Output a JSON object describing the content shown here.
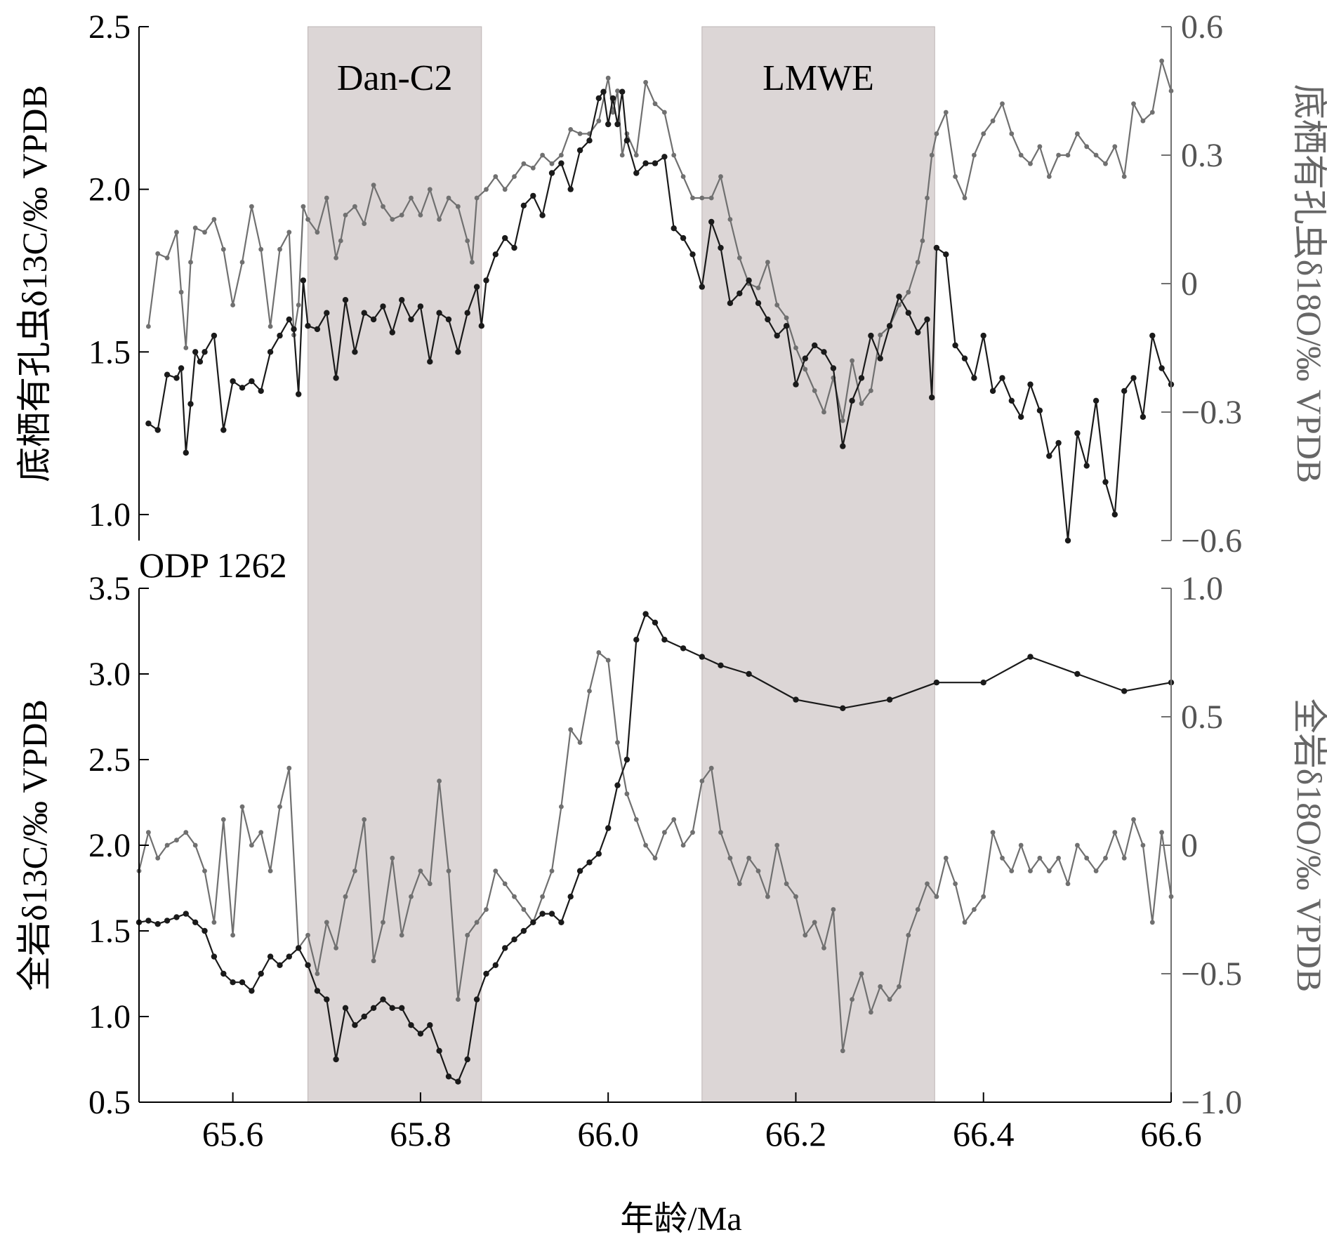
{
  "figure": {
    "xlabel": "年龄/Ma",
    "x_ticks": [
      "65.6",
      "65.8",
      "66.0",
      "66.2",
      "66.4",
      "66.6"
    ],
    "xlim": [
      65.5,
      66.6
    ],
    "colors": {
      "dark": "#1a1a1a",
      "gray": "#707070",
      "shade": "#dcd6d6",
      "axis": "#000000"
    },
    "shaded_intervals": [
      {
        "label": "Dan-C2",
        "start": 65.68,
        "end": 65.865
      },
      {
        "label": "LMWE",
        "start": 66.1,
        "end": 66.348
      }
    ]
  },
  "chart_data": [
    {
      "type": "line",
      "panel": "top",
      "ylabel_left": "底栖有孔虫δ13C/‰ VPDB",
      "ylabel_right": "底栖有孔虫δ18O/‰ VPDB",
      "ylim_left": [
        0.92,
        2.5
      ],
      "ylim_right": [
        -0.6,
        0.6
      ],
      "left_ticks": [
        "1.0",
        "1.5",
        "2.0",
        "2.5"
      ],
      "right_ticks": [
        "−0.6",
        "−0.3",
        "0",
        "0.3",
        "0.6"
      ],
      "series": [
        {
          "axis": "left",
          "style": "dark",
          "x": [
            65.51,
            65.52,
            65.53,
            65.54,
            65.545,
            65.55,
            65.555,
            65.56,
            65.565,
            65.57,
            65.58,
            65.59,
            65.6,
            65.61,
            65.62,
            65.63,
            65.64,
            65.65,
            65.66,
            65.665,
            65.67,
            65.675,
            65.68,
            65.69,
            65.7,
            65.71,
            65.72,
            65.73,
            65.74,
            65.75,
            65.76,
            65.77,
            65.78,
            65.79,
            65.8,
            65.81,
            65.82,
            65.83,
            65.84,
            65.85,
            65.86,
            65.865,
            65.87,
            65.88,
            65.89,
            65.9,
            65.91,
            65.92,
            65.93,
            65.94,
            65.95,
            65.96,
            65.97,
            65.98,
            65.99,
            65.995,
            66.0,
            66.005,
            66.01,
            66.015,
            66.02,
            66.03,
            66.04,
            66.05,
            66.06,
            66.07,
            66.08,
            66.09,
            66.1,
            66.11,
            66.12,
            66.13,
            66.14,
            66.15,
            66.16,
            66.17,
            66.18,
            66.19,
            66.2,
            66.21,
            66.22,
            66.23,
            66.24,
            66.25,
            66.26,
            66.27,
            66.28,
            66.29,
            66.3,
            66.31,
            66.32,
            66.33,
            66.34,
            66.345,
            66.35,
            66.36,
            66.37,
            66.38,
            66.39,
            66.4,
            66.41,
            66.42,
            66.43,
            66.44,
            66.45,
            66.46,
            66.47,
            66.48,
            66.49,
            66.5,
            66.51,
            66.52,
            66.53,
            66.54,
            66.55,
            66.56,
            66.57,
            66.58,
            66.59,
            66.6
          ],
          "y": [
            1.28,
            1.26,
            1.43,
            1.42,
            1.45,
            1.19,
            1.34,
            1.5,
            1.47,
            1.5,
            1.55,
            1.26,
            1.41,
            1.39,
            1.41,
            1.38,
            1.5,
            1.55,
            1.6,
            1.57,
            1.37,
            1.72,
            1.58,
            1.57,
            1.62,
            1.42,
            1.66,
            1.5,
            1.62,
            1.6,
            1.64,
            1.56,
            1.66,
            1.6,
            1.64,
            1.47,
            1.62,
            1.6,
            1.5,
            1.62,
            1.7,
            1.58,
            1.72,
            1.8,
            1.85,
            1.82,
            1.95,
            1.98,
            1.92,
            2.05,
            2.08,
            2.0,
            2.12,
            2.15,
            2.28,
            2.3,
            2.2,
            2.28,
            2.2,
            2.3,
            2.15,
            2.05,
            2.08,
            2.08,
            2.1,
            1.88,
            1.85,
            1.8,
            1.7,
            1.9,
            1.82,
            1.65,
            1.68,
            1.72,
            1.65,
            1.6,
            1.55,
            1.58,
            1.4,
            1.48,
            1.52,
            1.5,
            1.45,
            1.21,
            1.35,
            1.42,
            1.55,
            1.48,
            1.58,
            1.67,
            1.62,
            1.56,
            1.6,
            1.36,
            1.82,
            1.8,
            1.52,
            1.48,
            1.42,
            1.55,
            1.38,
            1.42,
            1.35,
            1.3,
            1.4,
            1.32,
            1.18,
            1.22,
            0.92,
            1.25,
            1.15,
            1.35,
            1.1,
            1.0,
            1.38,
            1.42,
            1.3,
            1.55,
            1.45,
            1.4
          ]
        },
        {
          "axis": "right",
          "style": "gray",
          "x": [
            65.51,
            65.52,
            65.53,
            65.54,
            65.545,
            65.55,
            65.555,
            65.56,
            65.57,
            65.58,
            65.59,
            65.6,
            65.61,
            65.62,
            65.63,
            65.64,
            65.65,
            65.66,
            65.665,
            65.67,
            65.675,
            65.68,
            65.69,
            65.7,
            65.71,
            65.715,
            65.72,
            65.73,
            65.74,
            65.75,
            65.76,
            65.77,
            65.78,
            65.79,
            65.8,
            65.81,
            65.82,
            65.83,
            65.84,
            65.85,
            65.855,
            65.86,
            65.87,
            65.88,
            65.89,
            65.9,
            65.91,
            65.92,
            65.93,
            65.94,
            65.95,
            65.96,
            65.97,
            65.98,
            65.99,
            66.0,
            66.005,
            66.01,
            66.015,
            66.02,
            66.03,
            66.04,
            66.05,
            66.06,
            66.07,
            66.08,
            66.09,
            66.1,
            66.11,
            66.12,
            66.13,
            66.14,
            66.15,
            66.16,
            66.17,
            66.18,
            66.19,
            66.2,
            66.21,
            66.22,
            66.23,
            66.24,
            66.25,
            66.26,
            66.27,
            66.28,
            66.29,
            66.3,
            66.31,
            66.32,
            66.33,
            66.335,
            66.34,
            66.345,
            66.35,
            66.36,
            66.37,
            66.38,
            66.39,
            66.4,
            66.41,
            66.42,
            66.43,
            66.44,
            66.45,
            66.46,
            66.47,
            66.48,
            66.49,
            66.5,
            66.51,
            66.52,
            66.53,
            66.54,
            66.55,
            66.56,
            66.57,
            66.58,
            66.59,
            66.6
          ],
          "y": [
            -0.1,
            0.07,
            0.06,
            0.12,
            -0.02,
            -0.15,
            0.05,
            0.13,
            0.12,
            0.15,
            0.08,
            -0.05,
            0.05,
            0.18,
            0.08,
            -0.1,
            0.08,
            0.12,
            -0.12,
            -0.05,
            0.18,
            0.15,
            0.12,
            0.2,
            0.06,
            0.1,
            0.16,
            0.18,
            0.14,
            0.23,
            0.18,
            0.15,
            0.16,
            0.2,
            0.16,
            0.22,
            0.15,
            0.2,
            0.18,
            0.1,
            0.05,
            0.2,
            0.22,
            0.25,
            0.22,
            0.25,
            0.28,
            0.27,
            0.3,
            0.28,
            0.3,
            0.36,
            0.35,
            0.35,
            0.38,
            0.48,
            0.4,
            0.45,
            0.3,
            0.35,
            0.3,
            0.47,
            0.42,
            0.4,
            0.3,
            0.25,
            0.2,
            0.2,
            0.2,
            0.25,
            0.15,
            0.06,
            0.0,
            -0.01,
            0.05,
            -0.05,
            -0.08,
            -0.15,
            -0.2,
            -0.25,
            -0.3,
            -0.22,
            -0.32,
            -0.18,
            -0.28,
            -0.25,
            -0.12,
            -0.1,
            -0.05,
            -0.02,
            0.05,
            0.1,
            0.2,
            0.3,
            0.35,
            0.4,
            0.25,
            0.2,
            0.3,
            0.35,
            0.38,
            0.42,
            0.35,
            0.3,
            0.28,
            0.32,
            0.25,
            0.3,
            0.3,
            0.35,
            0.32,
            0.3,
            0.28,
            0.32,
            0.25,
            0.42,
            0.38,
            0.4,
            0.52,
            0.45
          ]
        }
      ]
    },
    {
      "type": "line",
      "panel": "bottom",
      "site": "ODP 1262",
      "ylabel_left": "全岩δ13C/‰ VPDB",
      "ylabel_right": "全岩δ18O/‰ VPDB",
      "ylim_left": [
        0.5,
        3.5
      ],
      "ylim_right": [
        -1.0,
        1.0
      ],
      "left_ticks": [
        "0.5",
        "1.0",
        "1.5",
        "2.0",
        "2.5",
        "3.0",
        "3.5"
      ],
      "right_ticks": [
        "−1.0",
        "−0.5",
        "0",
        "0.5",
        "1.0"
      ],
      "series": [
        {
          "axis": "left",
          "style": "dark",
          "x": [
            65.5,
            65.51,
            65.52,
            65.53,
            65.54,
            65.55,
            65.56,
            65.57,
            65.58,
            65.59,
            65.6,
            65.61,
            65.62,
            65.63,
            65.64,
            65.65,
            65.66,
            65.67,
            65.68,
            65.69,
            65.7,
            65.71,
            65.72,
            65.73,
            65.74,
            65.75,
            65.76,
            65.77,
            65.78,
            65.79,
            65.8,
            65.81,
            65.82,
            65.83,
            65.84,
            65.85,
            65.86,
            65.87,
            65.88,
            65.89,
            65.9,
            65.91,
            65.92,
            65.93,
            65.94,
            65.95,
            65.96,
            65.97,
            65.98,
            65.99,
            66.0,
            66.01,
            66.02,
            66.03,
            66.04,
            66.05,
            66.06,
            66.08,
            66.1,
            66.12,
            66.15,
            66.2,
            66.25,
            66.3,
            66.35,
            66.4,
            66.45,
            66.5,
            66.55,
            66.6
          ],
          "y": [
            1.55,
            1.56,
            1.54,
            1.56,
            1.58,
            1.6,
            1.55,
            1.5,
            1.35,
            1.25,
            1.2,
            1.2,
            1.15,
            1.25,
            1.35,
            1.3,
            1.35,
            1.4,
            1.3,
            1.15,
            1.1,
            0.75,
            1.05,
            0.95,
            1.0,
            1.05,
            1.1,
            1.05,
            1.05,
            0.95,
            0.9,
            0.95,
            0.8,
            0.65,
            0.62,
            0.75,
            1.1,
            1.25,
            1.3,
            1.4,
            1.45,
            1.5,
            1.55,
            1.6,
            1.6,
            1.55,
            1.7,
            1.85,
            1.9,
            1.95,
            2.1,
            2.35,
            2.5,
            3.2,
            3.35,
            3.3,
            3.2,
            3.15,
            3.1,
            3.05,
            3.0,
            2.85,
            2.8,
            2.85,
            2.95,
            2.95,
            3.1,
            3.0,
            2.9,
            2.95
          ]
        },
        {
          "axis": "right",
          "style": "gray",
          "x": [
            65.5,
            65.51,
            65.52,
            65.53,
            65.54,
            65.55,
            65.56,
            65.57,
            65.58,
            65.59,
            65.6,
            65.61,
            65.62,
            65.63,
            65.64,
            65.65,
            65.66,
            65.67,
            65.68,
            65.69,
            65.7,
            65.71,
            65.72,
            65.73,
            65.74,
            65.75,
            65.76,
            65.77,
            65.78,
            65.79,
            65.8,
            65.81,
            65.82,
            65.83,
            65.84,
            65.85,
            65.86,
            65.87,
            65.88,
            65.89,
            65.9,
            65.91,
            65.92,
            65.93,
            65.94,
            65.95,
            65.96,
            65.97,
            65.98,
            65.99,
            66.0,
            66.01,
            66.02,
            66.03,
            66.04,
            66.05,
            66.06,
            66.07,
            66.08,
            66.09,
            66.1,
            66.11,
            66.12,
            66.13,
            66.14,
            66.15,
            66.16,
            66.17,
            66.18,
            66.19,
            66.2,
            66.21,
            66.22,
            66.23,
            66.24,
            66.25,
            66.26,
            66.27,
            66.28,
            66.29,
            66.3,
            66.31,
            66.32,
            66.33,
            66.34,
            66.35,
            66.36,
            66.37,
            66.38,
            66.39,
            66.4,
            66.41,
            66.42,
            66.43,
            66.44,
            66.45,
            66.46,
            66.47,
            66.48,
            66.49,
            66.5,
            66.51,
            66.52,
            66.53,
            66.54,
            66.55,
            66.56,
            66.57,
            66.58,
            66.59,
            66.6
          ],
          "y": [
            -0.1,
            0.05,
            -0.05,
            0.0,
            0.02,
            0.05,
            0.0,
            -0.1,
            -0.3,
            0.1,
            -0.35,
            0.15,
            0.0,
            0.05,
            -0.1,
            0.15,
            0.3,
            -0.4,
            -0.35,
            -0.5,
            -0.3,
            -0.4,
            -0.2,
            -0.1,
            0.1,
            -0.45,
            -0.3,
            -0.05,
            -0.35,
            -0.2,
            -0.1,
            -0.15,
            0.25,
            -0.1,
            -0.6,
            -0.35,
            -0.3,
            -0.25,
            -0.1,
            -0.15,
            -0.2,
            -0.25,
            -0.3,
            -0.2,
            -0.1,
            0.15,
            0.45,
            0.4,
            0.6,
            0.75,
            0.72,
            0.4,
            0.2,
            0.1,
            0.0,
            -0.05,
            0.05,
            0.1,
            0.0,
            0.05,
            0.25,
            0.3,
            0.05,
            -0.05,
            -0.15,
            -0.05,
            -0.1,
            -0.2,
            0.0,
            -0.15,
            -0.2,
            -0.35,
            -0.3,
            -0.4,
            -0.25,
            -0.8,
            -0.6,
            -0.5,
            -0.65,
            -0.55,
            -0.6,
            -0.55,
            -0.35,
            -0.25,
            -0.15,
            -0.2,
            -0.05,
            -0.15,
            -0.3,
            -0.25,
            -0.2,
            0.05,
            -0.05,
            -0.1,
            0.0,
            -0.1,
            -0.05,
            -0.1,
            -0.05,
            -0.15,
            0.0,
            -0.05,
            -0.1,
            -0.05,
            0.05,
            -0.05,
            0.1,
            0.0,
            -0.3,
            0.05,
            -0.2
          ]
        }
      ]
    }
  ]
}
